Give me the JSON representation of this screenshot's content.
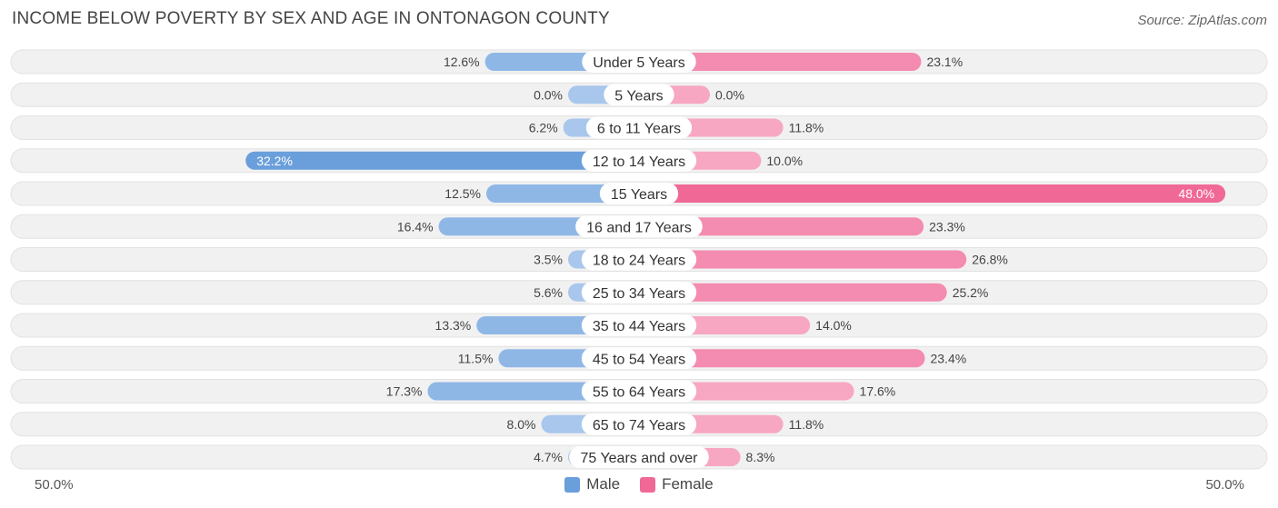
{
  "title": "INCOME BELOW POVERTY BY SEX AND AGE IN ONTONAGON COUNTY",
  "source": "Source: ZipAtlas.com",
  "axis": {
    "left_label": "50.0%",
    "right_label": "50.0%"
  },
  "legend": {
    "male": "Male",
    "female": "Female"
  },
  "colors": {
    "male_dark": "#6a9fdb",
    "male_light": "#a9c7ec",
    "female_dark": "#f06895",
    "female_light": "#f7a7c1",
    "row_bg": "#f1f1f1",
    "row_border": "#e2e2e2"
  },
  "chart_data": {
    "type": "bar",
    "orientation": "horizontal-diverging",
    "title": "INCOME BELOW POVERTY BY SEX AND AGE IN ONTONAGON COUNTY",
    "xlim": [
      -50,
      50
    ],
    "categories": [
      "Under 5 Years",
      "5 Years",
      "6 to 11 Years",
      "12 to 14 Years",
      "15 Years",
      "16 and 17 Years",
      "18 to 24 Years",
      "25 to 34 Years",
      "35 to 44 Years",
      "45 to 54 Years",
      "55 to 64 Years",
      "65 to 74 Years",
      "75 Years and over"
    ],
    "series": [
      {
        "name": "Male",
        "values": [
          12.6,
          0.0,
          6.2,
          32.2,
          12.5,
          16.4,
          3.5,
          5.6,
          13.3,
          11.5,
          17.3,
          8.0,
          4.7
        ],
        "labels": [
          "12.6%",
          "0.0%",
          "6.2%",
          "32.2%",
          "12.5%",
          "16.4%",
          "3.5%",
          "5.6%",
          "13.3%",
          "11.5%",
          "17.3%",
          "8.0%",
          "4.7%"
        ]
      },
      {
        "name": "Female",
        "values": [
          23.1,
          0.0,
          11.8,
          10.0,
          48.0,
          23.3,
          26.8,
          25.2,
          14.0,
          23.4,
          17.6,
          11.8,
          8.3
        ],
        "labels": [
          "23.1%",
          "0.0%",
          "11.8%",
          "10.0%",
          "48.0%",
          "23.3%",
          "26.8%",
          "25.2%",
          "14.0%",
          "23.4%",
          "17.6%",
          "11.8%",
          "8.3%"
        ]
      }
    ]
  }
}
